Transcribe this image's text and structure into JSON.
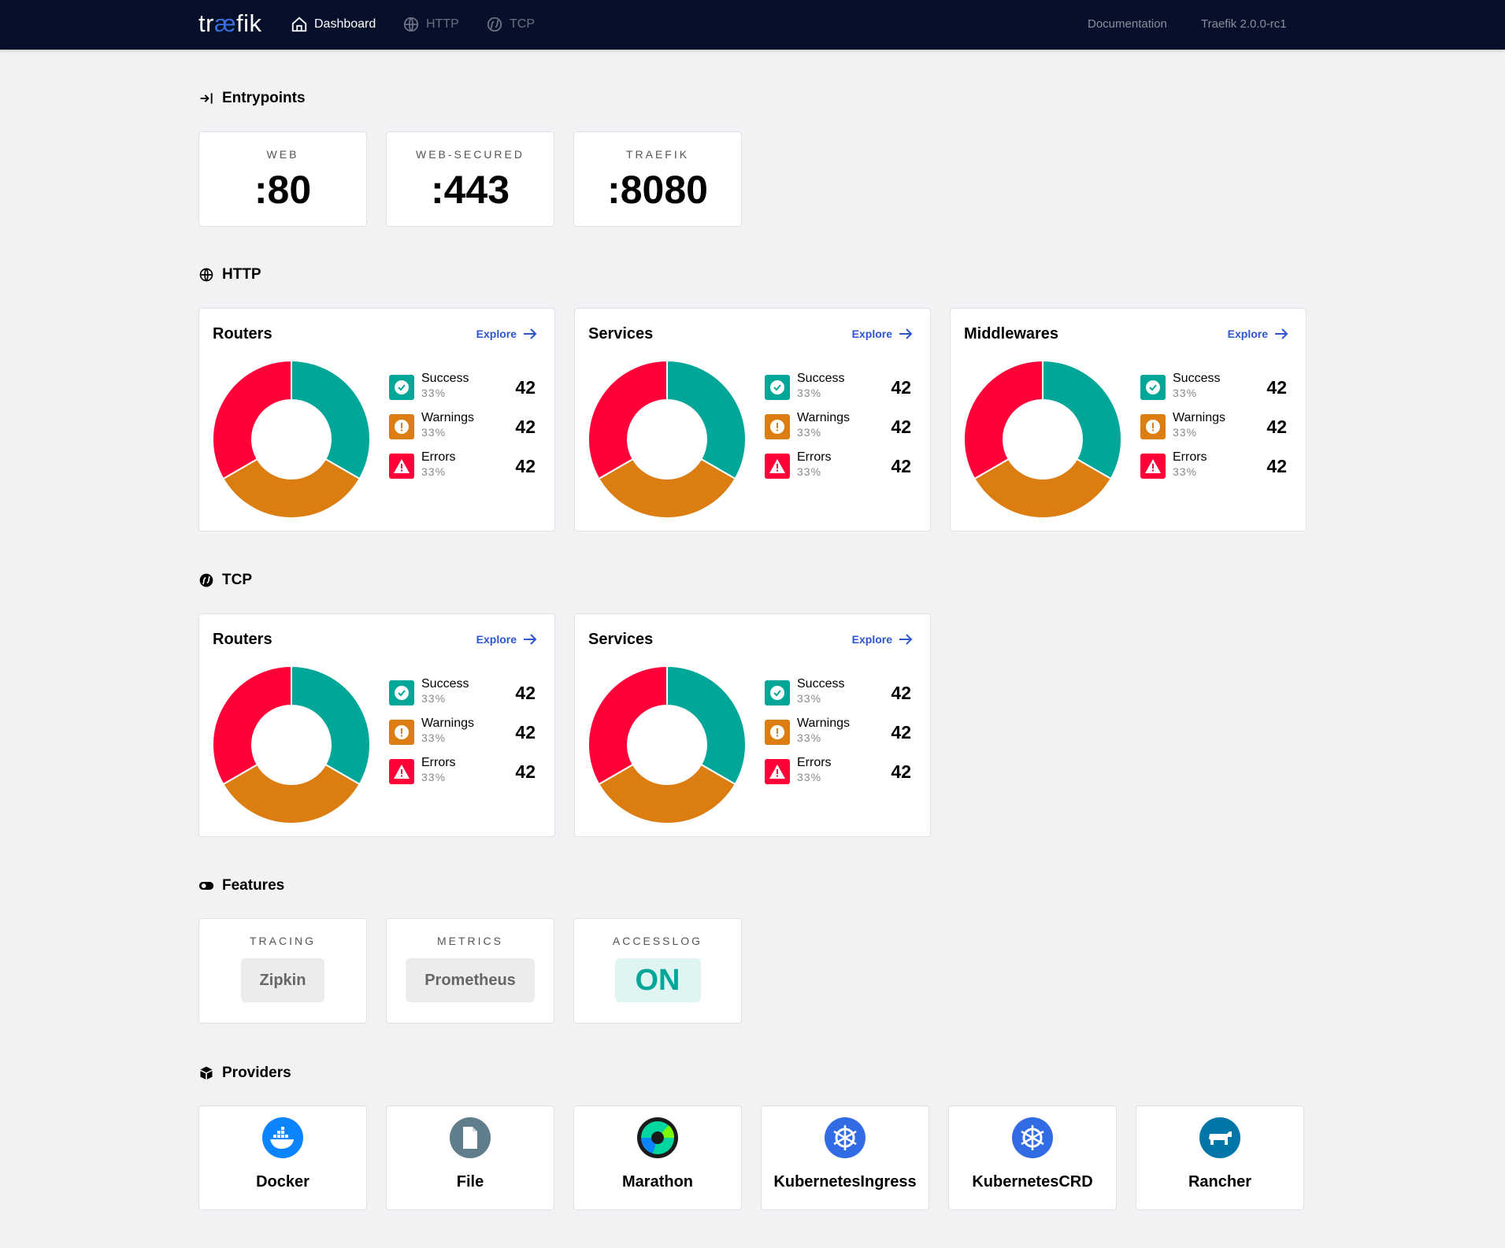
{
  "header": {
    "logo": "træfik",
    "nav": [
      {
        "label": "Dashboard",
        "icon": "home-icon",
        "active": true
      },
      {
        "label": "HTTP",
        "icon": "globe-icon",
        "active": false
      },
      {
        "label": "TCP",
        "icon": "tcp-icon",
        "active": false
      }
    ],
    "documentation": "Documentation",
    "version": "Traefik 2.0.0-rc1"
  },
  "entrypoints": {
    "title": "Entrypoints",
    "items": [
      {
        "name": "WEB",
        "port": ":80"
      },
      {
        "name": "WEB-SECURED",
        "port": ":443"
      },
      {
        "name": "TRAEFIK",
        "port": ":8080"
      }
    ]
  },
  "colors": {
    "success": "#00a697",
    "warnings": "#db7d11",
    "errors": "#ff0039",
    "accent": "#2f55d4",
    "nav": "#06102b"
  },
  "http": {
    "title": "HTTP",
    "cards": [
      {
        "title": "Routers",
        "explore": "Explore",
        "stats": [
          {
            "label": "Success",
            "pct": "33%",
            "value": "42"
          },
          {
            "label": "Warnings",
            "pct": "33%",
            "value": "42"
          },
          {
            "label": "Errors",
            "pct": "33%",
            "value": "42"
          }
        ]
      },
      {
        "title": "Services",
        "explore": "Explore",
        "stats": [
          {
            "label": "Success",
            "pct": "33%",
            "value": "42"
          },
          {
            "label": "Warnings",
            "pct": "33%",
            "value": "42"
          },
          {
            "label": "Errors",
            "pct": "33%",
            "value": "42"
          }
        ]
      },
      {
        "title": "Middlewares",
        "explore": "Explore",
        "stats": [
          {
            "label": "Success",
            "pct": "33%",
            "value": "42"
          },
          {
            "label": "Warnings",
            "pct": "33%",
            "value": "42"
          },
          {
            "label": "Errors",
            "pct": "33%",
            "value": "42"
          }
        ]
      }
    ]
  },
  "tcp": {
    "title": "TCP",
    "cards": [
      {
        "title": "Routers",
        "explore": "Explore",
        "stats": [
          {
            "label": "Success",
            "pct": "33%",
            "value": "42"
          },
          {
            "label": "Warnings",
            "pct": "33%",
            "value": "42"
          },
          {
            "label": "Errors",
            "pct": "33%",
            "value": "42"
          }
        ]
      },
      {
        "title": "Services",
        "explore": "Explore",
        "stats": [
          {
            "label": "Success",
            "pct": "33%",
            "value": "42"
          },
          {
            "label": "Warnings",
            "pct": "33%",
            "value": "42"
          },
          {
            "label": "Errors",
            "pct": "33%",
            "value": "42"
          }
        ]
      }
    ]
  },
  "features": {
    "title": "Features",
    "items": [
      {
        "name": "TRACING",
        "value": "Zipkin"
      },
      {
        "name": "METRICS",
        "value": "Prometheus"
      },
      {
        "name": "ACCESSLOG",
        "value": "ON"
      }
    ]
  },
  "providers": {
    "title": "Providers",
    "items": [
      {
        "name": "Docker",
        "icon": "docker-icon"
      },
      {
        "name": "File",
        "icon": "file-icon"
      },
      {
        "name": "Marathon",
        "icon": "marathon-icon"
      },
      {
        "name": "KubernetesIngress",
        "icon": "kubernetes-icon"
      },
      {
        "name": "KubernetesCRD",
        "icon": "kubernetes-icon"
      },
      {
        "name": "Rancher",
        "icon": "rancher-icon"
      }
    ]
  }
}
